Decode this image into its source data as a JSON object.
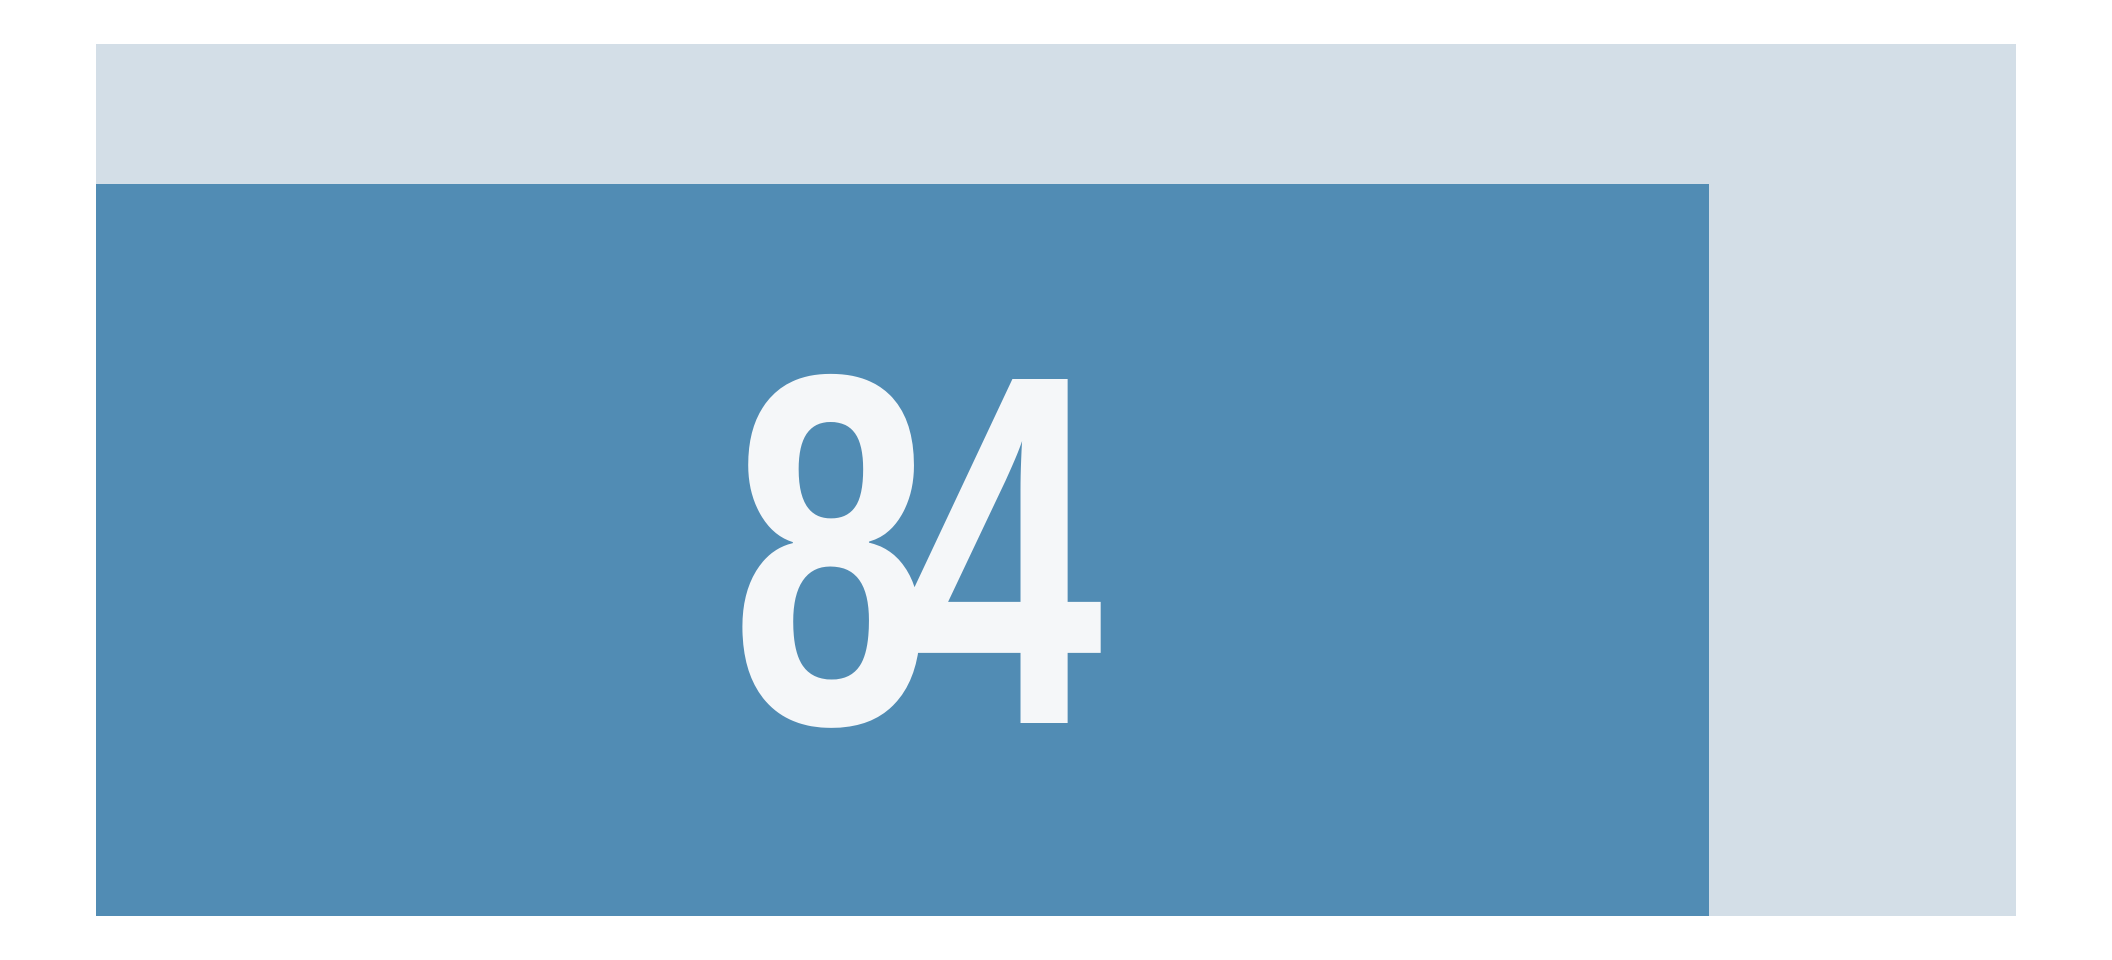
{
  "chart_data": {
    "type": "bar",
    "values": [
      84
    ],
    "value_label": "84",
    "ylim": [
      0,
      100
    ],
    "xlim": [
      0,
      100
    ],
    "grid": false,
    "colors": {
      "fill": "#518cb4",
      "track": "#d3dee7",
      "label": "#f5f7f9"
    }
  }
}
